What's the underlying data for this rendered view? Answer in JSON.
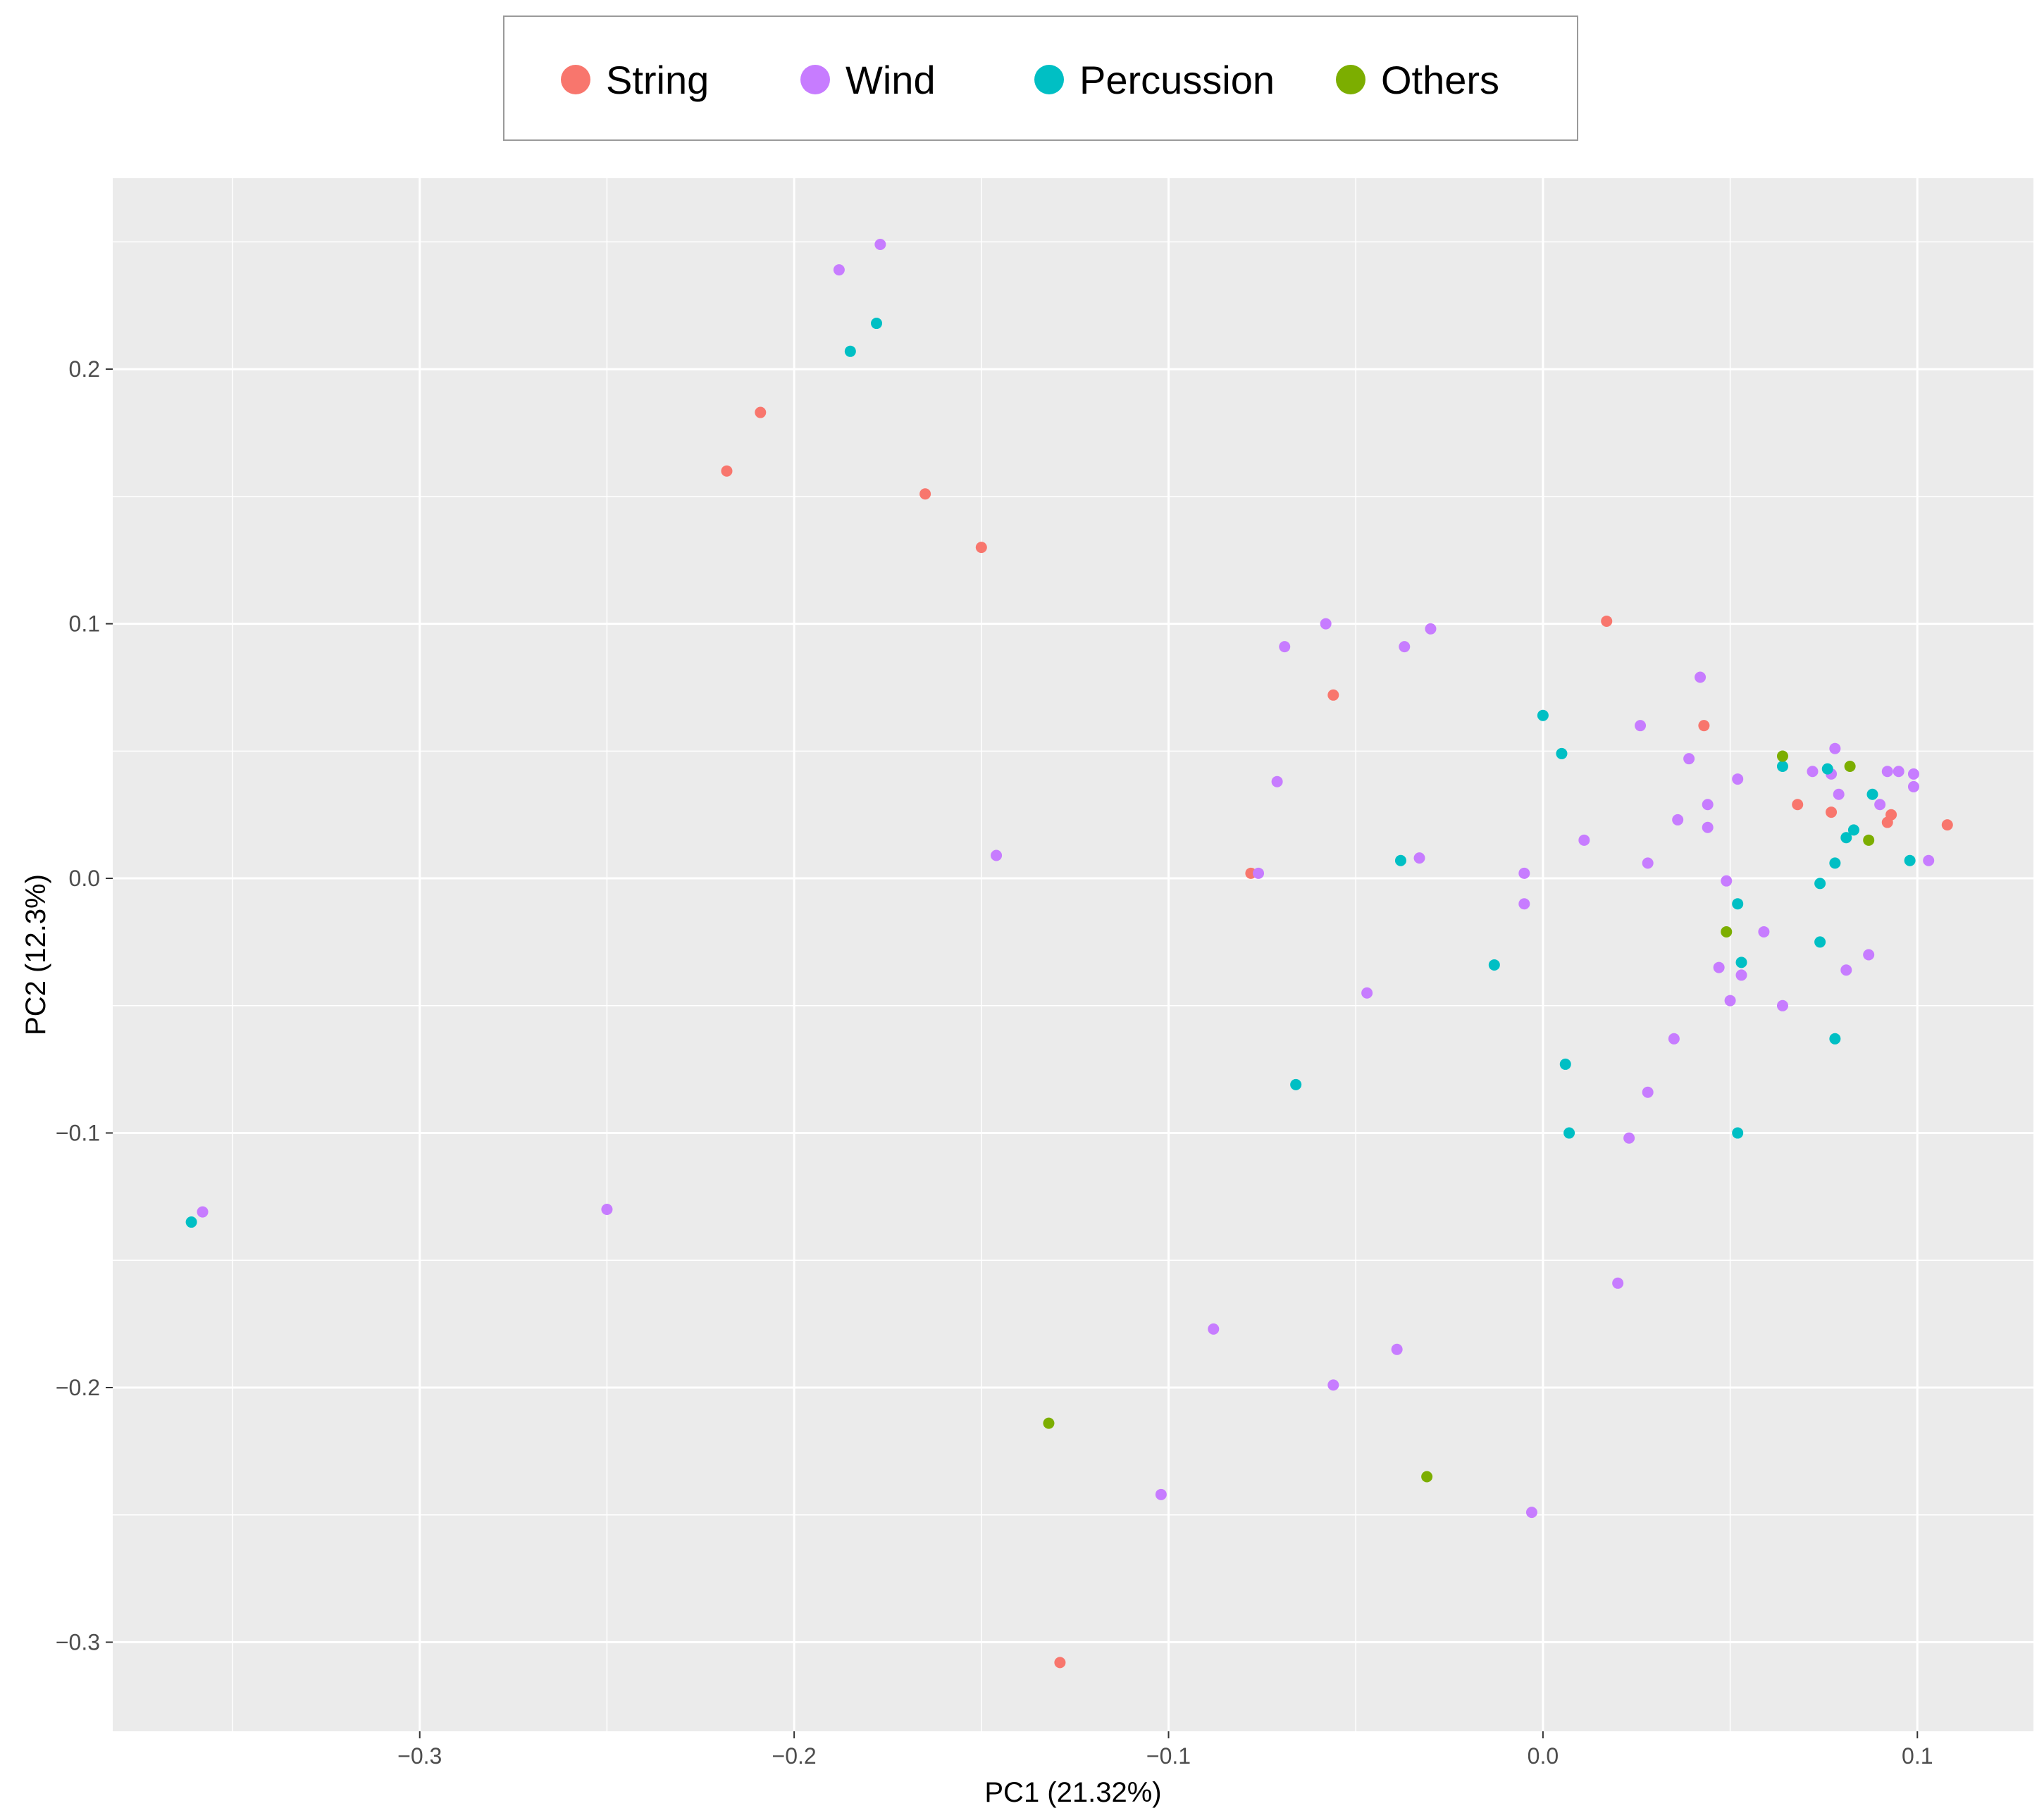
{
  "colors": {
    "String": "#F8766D",
    "Wind": "#C77CFF",
    "Percussion": "#00BFC4",
    "Others": "#7CAE00",
    "panel_background": "#EBEBEB",
    "grid": "#FFFFFF"
  },
  "chart_data": {
    "type": "scatter",
    "xlabel": "PC1 (21.32%)",
    "ylabel": "PC2 (12.3%)",
    "xlim": [
      -0.382,
      0.131
    ],
    "ylim": [
      -0.335,
      0.275
    ],
    "xticks": [
      -0.3,
      -0.2,
      -0.1,
      0.0,
      0.1
    ],
    "xtick_labels": [
      "−0.3",
      "−0.2",
      "−0.1",
      "0.0",
      "0.1"
    ],
    "yticks": [
      -0.3,
      -0.2,
      -0.1,
      0.0,
      0.1,
      0.2
    ],
    "ytick_labels": [
      "−0.3",
      "−0.2",
      "−0.1",
      "0.0",
      "0.1",
      "0.2"
    ],
    "grid": true,
    "legend_position": "top",
    "legend": [
      "String",
      "Wind",
      "Percussion",
      "Others"
    ],
    "series": [
      {
        "name": "String",
        "points": [
          [
            -0.209,
            0.183
          ],
          [
            -0.218,
            0.16
          ],
          [
            -0.165,
            0.151
          ],
          [
            -0.15,
            0.13
          ],
          [
            0.017,
            0.101
          ],
          [
            -0.056,
            0.072
          ],
          [
            0.043,
            0.06
          ],
          [
            -0.078,
            0.002
          ],
          [
            -0.129,
            -0.308
          ],
          [
            0.068,
            0.029
          ],
          [
            0.077,
            0.026
          ],
          [
            0.092,
            0.022
          ],
          [
            0.093,
            0.025
          ],
          [
            0.108,
            0.021
          ]
        ]
      },
      {
        "name": "Wind",
        "points": [
          [
            -0.177,
            0.249
          ],
          [
            -0.188,
            0.239
          ],
          [
            -0.058,
            0.1
          ],
          [
            -0.069,
            0.091
          ],
          [
            -0.037,
            0.091
          ],
          [
            -0.03,
            0.098
          ],
          [
            -0.071,
            0.038
          ],
          [
            -0.146,
            0.009
          ],
          [
            -0.076,
            0.002
          ],
          [
            -0.033,
            0.008
          ],
          [
            0.042,
            0.079
          ],
          [
            0.026,
            0.06
          ],
          [
            0.039,
            0.047
          ],
          [
            0.052,
            0.039
          ],
          [
            0.044,
            0.029
          ],
          [
            0.036,
            0.023
          ],
          [
            0.044,
            0.02
          ],
          [
            0.011,
            0.015
          ],
          [
            0.028,
            0.006
          ],
          [
            -0.005,
            0.002
          ],
          [
            -0.005,
            -0.01
          ],
          [
            0.049,
            -0.001
          ],
          [
            0.059,
            -0.021
          ],
          [
            0.047,
            -0.035
          ],
          [
            0.053,
            -0.038
          ],
          [
            0.05,
            -0.048
          ],
          [
            0.064,
            -0.05
          ],
          [
            0.035,
            -0.063
          ],
          [
            0.028,
            -0.084
          ],
          [
            0.023,
            -0.102
          ],
          [
            -0.047,
            -0.045
          ],
          [
            0.02,
            -0.159
          ],
          [
            -0.088,
            -0.177
          ],
          [
            -0.039,
            -0.185
          ],
          [
            -0.056,
            -0.199
          ],
          [
            -0.102,
            -0.242
          ],
          [
            -0.003,
            -0.249
          ],
          [
            -0.358,
            -0.131
          ],
          [
            -0.25,
            -0.13
          ],
          [
            0.072,
            0.042
          ],
          [
            0.077,
            0.041
          ],
          [
            0.078,
            0.051
          ],
          [
            0.079,
            0.033
          ],
          [
            0.09,
            0.029
          ],
          [
            0.092,
            0.042
          ],
          [
            0.095,
            0.042
          ],
          [
            0.099,
            0.036
          ],
          [
            0.099,
            0.041
          ],
          [
            0.103,
            0.007
          ],
          [
            0.081,
            -0.036
          ],
          [
            0.087,
            -0.03
          ]
        ]
      },
      {
        "name": "Percussion",
        "points": [
          [
            -0.178,
            0.218
          ],
          [
            -0.185,
            0.207
          ],
          [
            0.0,
            0.064
          ],
          [
            0.005,
            0.049
          ],
          [
            -0.038,
            0.007
          ],
          [
            -0.013,
            -0.034
          ],
          [
            -0.066,
            -0.081
          ],
          [
            0.006,
            -0.073
          ],
          [
            0.007,
            -0.1
          ],
          [
            0.052,
            -0.01
          ],
          [
            0.053,
            -0.033
          ],
          [
            0.052,
            -0.1
          ],
          [
            0.064,
            0.044
          ],
          [
            0.076,
            0.043
          ],
          [
            0.088,
            0.033
          ],
          [
            0.081,
            0.016
          ],
          [
            0.083,
            0.019
          ],
          [
            0.078,
            0.006
          ],
          [
            0.074,
            -0.002
          ],
          [
            0.074,
            -0.025
          ],
          [
            0.078,
            -0.063
          ],
          [
            0.098,
            0.007
          ],
          [
            -0.361,
            -0.135
          ]
        ]
      },
      {
        "name": "Others",
        "points": [
          [
            0.064,
            0.048
          ],
          [
            0.082,
            0.044
          ],
          [
            0.087,
            0.015
          ],
          [
            0.049,
            -0.021
          ],
          [
            -0.132,
            -0.214
          ],
          [
            -0.031,
            -0.235
          ]
        ]
      }
    ]
  }
}
